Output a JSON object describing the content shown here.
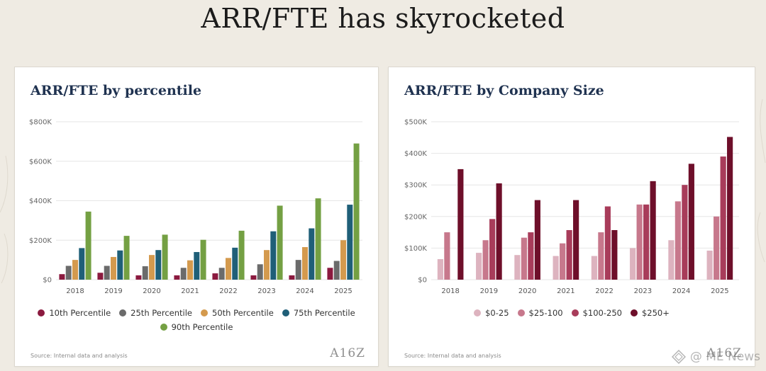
{
  "page": {
    "title": "ARR/FTE has skyrocketed"
  },
  "watermark": {
    "text": "@ ME News"
  },
  "left_card": {
    "title": "ARR/FTE by percentile",
    "source": "Source: Internal data and analysis",
    "logo": "A16Z"
  },
  "right_card": {
    "title": "ARR/FTE by Company Size",
    "source": "Source: Internal data and analysis",
    "logo": "A16Z"
  },
  "chart_data": [
    {
      "type": "bar",
      "title": "ARR/FTE by percentile",
      "categories": [
        "2018",
        "2019",
        "2020",
        "2021",
        "2022",
        "2023",
        "2024",
        "2025"
      ],
      "ylim": [
        0,
        800000
      ],
      "yticks": [
        0,
        200000,
        400000,
        600000,
        800000
      ],
      "ytick_labels": [
        "$0",
        "$200K",
        "$400K",
        "$600K",
        "$800K"
      ],
      "grid": true,
      "legend_position": "bottom",
      "series": [
        {
          "name": "10th Percentile",
          "color": "#8b1a3f",
          "values": [
            28000,
            35000,
            22000,
            22000,
            32000,
            22000,
            22000,
            60000
          ]
        },
        {
          "name": "25th Percentile",
          "color": "#6b6b6b",
          "values": [
            70000,
            70000,
            68000,
            60000,
            60000,
            78000,
            100000,
            95000
          ]
        },
        {
          "name": "50th Percentile",
          "color": "#d49a4e",
          "values": [
            100000,
            115000,
            125000,
            98000,
            110000,
            150000,
            165000,
            200000
          ]
        },
        {
          "name": "75th Percentile",
          "color": "#1f5f78",
          "values": [
            160000,
            148000,
            150000,
            140000,
            162000,
            245000,
            260000,
            380000
          ]
        },
        {
          "name": "90th Percentile",
          "color": "#74a043",
          "values": [
            345000,
            222000,
            228000,
            202000,
            248000,
            375000,
            412000,
            690000
          ]
        }
      ]
    },
    {
      "type": "bar",
      "title": "ARR/FTE by Company Size",
      "categories": [
        "2018",
        "2019",
        "2020",
        "2021",
        "2022",
        "2023",
        "2024",
        "2025"
      ],
      "ylim": [
        0,
        500000
      ],
      "yticks": [
        0,
        100000,
        200000,
        300000,
        400000,
        500000
      ],
      "ytick_labels": [
        "$0",
        "$100K",
        "$200K",
        "$300K",
        "$400K",
        "$500K"
      ],
      "grid": true,
      "legend_position": "bottom",
      "series": [
        {
          "name": "$0-25",
          "color": "#ddb3bf",
          "values": [
            65000,
            85000,
            78000,
            75000,
            75000,
            100000,
            125000,
            92000
          ]
        },
        {
          "name": "$25-100",
          "color": "#c7788c",
          "values": [
            150000,
            125000,
            133000,
            115000,
            150000,
            238000,
            248000,
            200000
          ]
        },
        {
          "name": "$100-250",
          "color": "#a83c5a",
          "values": [
            0,
            192000,
            150000,
            157000,
            232000,
            238000,
            300000,
            390000
          ]
        },
        {
          "name": "$250+",
          "color": "#6e0f2a",
          "values": [
            350000,
            305000,
            252000,
            252000,
            157000,
            312000,
            367000,
            452000
          ]
        }
      ]
    }
  ]
}
